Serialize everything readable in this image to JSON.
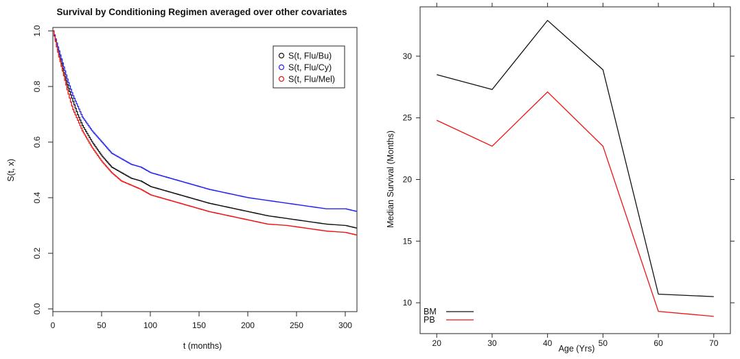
{
  "chart_data": [
    {
      "type": "line",
      "title": "Survival by Conditioning Regimen averaged over other covariates",
      "xlabel": "t (months)",
      "ylabel": "S(t, x)",
      "xlim": [
        0,
        312
      ],
      "ylim": [
        0,
        1
      ],
      "xticks": [
        0,
        50,
        100,
        150,
        200,
        250,
        300
      ],
      "yticks": [
        0.0,
        0.2,
        0.4,
        0.6,
        0.8,
        1.0
      ],
      "ytick_labels": [
        "0.0",
        "0.2",
        "0.4",
        "0.6",
        "0.8",
        "1.0"
      ],
      "legend_position": "top-right",
      "grid": false,
      "series": [
        {
          "name": "S(t, Flu/Bu)",
          "color": "#111111",
          "marker": "circle",
          "x": [
            0,
            5,
            10,
            15,
            20,
            25,
            30,
            40,
            50,
            60,
            70,
            80,
            90,
            100,
            120,
            140,
            160,
            180,
            200,
            220,
            240,
            260,
            280,
            300,
            312
          ],
          "y": [
            1.0,
            0.93,
            0.86,
            0.8,
            0.75,
            0.7,
            0.66,
            0.6,
            0.55,
            0.51,
            0.49,
            0.47,
            0.46,
            0.44,
            0.42,
            0.4,
            0.38,
            0.365,
            0.35,
            0.335,
            0.325,
            0.315,
            0.305,
            0.3,
            0.29
          ]
        },
        {
          "name": "S(t, Flu/Cy)",
          "color": "#2222ee",
          "marker": "circle",
          "x": [
            0,
            5,
            10,
            15,
            20,
            25,
            30,
            40,
            50,
            60,
            70,
            80,
            90,
            100,
            120,
            140,
            160,
            180,
            200,
            220,
            240,
            260,
            280,
            300,
            312
          ],
          "y": [
            1.0,
            0.94,
            0.88,
            0.82,
            0.77,
            0.73,
            0.69,
            0.64,
            0.6,
            0.56,
            0.54,
            0.52,
            0.51,
            0.49,
            0.47,
            0.45,
            0.43,
            0.415,
            0.4,
            0.39,
            0.38,
            0.37,
            0.36,
            0.36,
            0.35
          ]
        },
        {
          "name": "S(t, Flu/Mel)",
          "color": "#ee1111",
          "marker": "circle",
          "x": [
            0,
            5,
            10,
            15,
            20,
            25,
            30,
            40,
            50,
            60,
            70,
            80,
            90,
            100,
            120,
            140,
            160,
            180,
            200,
            220,
            240,
            260,
            280,
            300,
            312
          ],
          "y": [
            1.0,
            0.92,
            0.85,
            0.78,
            0.72,
            0.68,
            0.64,
            0.58,
            0.53,
            0.49,
            0.46,
            0.445,
            0.43,
            0.41,
            0.39,
            0.37,
            0.35,
            0.335,
            0.32,
            0.305,
            0.3,
            0.29,
            0.28,
            0.275,
            0.265
          ]
        }
      ]
    },
    {
      "type": "line",
      "title": "",
      "xlabel": "Age (Yrs)",
      "ylabel": "Median Survival (Months)",
      "xlim": [
        17,
        73
      ],
      "ylim": [
        7.5,
        34
      ],
      "xticks": [
        20,
        30,
        40,
        50,
        60,
        70
      ],
      "yticks": [
        10,
        15,
        20,
        25,
        30
      ],
      "legend_position": "bottom-left",
      "grid": false,
      "series": [
        {
          "name": "BM",
          "color": "#111111",
          "x": [
            20,
            30,
            40,
            50,
            60,
            70
          ],
          "y": [
            28.5,
            27.3,
            32.9,
            28.9,
            10.7,
            10.5
          ]
        },
        {
          "name": "PB",
          "color": "#ee1111",
          "x": [
            20,
            30,
            40,
            50,
            60,
            70
          ],
          "y": [
            24.8,
            22.7,
            27.1,
            22.7,
            9.3,
            8.9
          ]
        }
      ]
    }
  ]
}
